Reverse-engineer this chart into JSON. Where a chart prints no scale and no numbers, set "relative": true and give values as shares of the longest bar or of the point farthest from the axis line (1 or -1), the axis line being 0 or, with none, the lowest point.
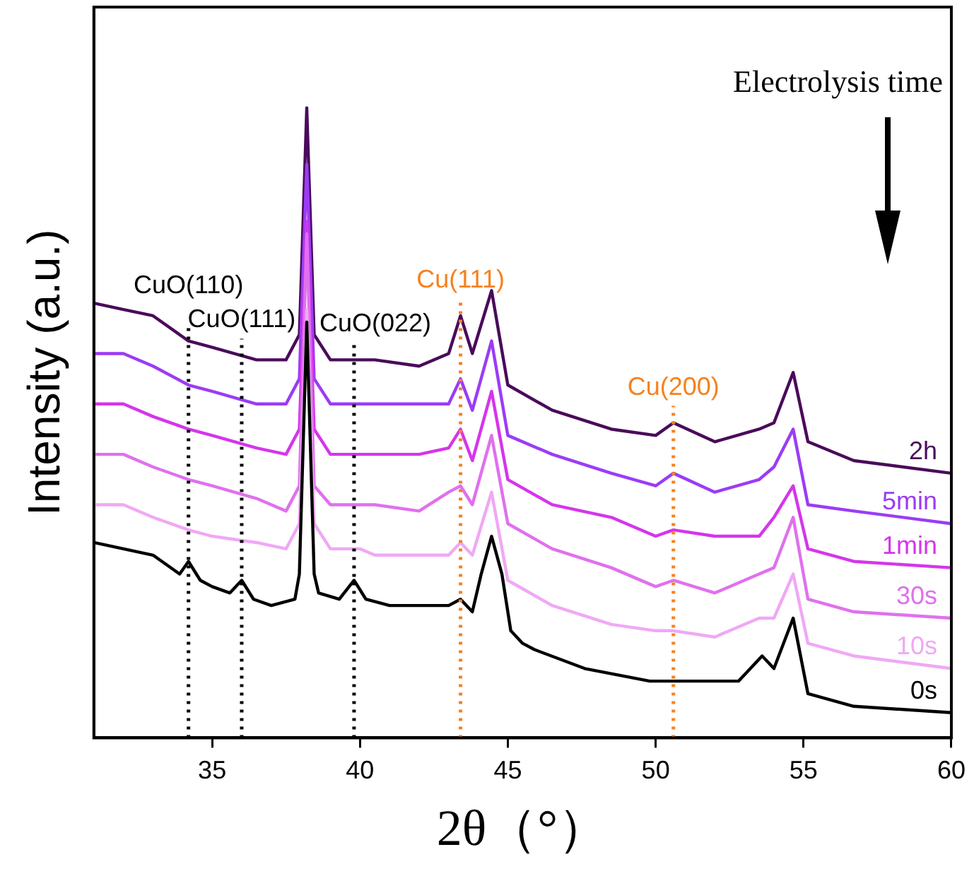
{
  "chart_data": {
    "type": "line",
    "relative": true,
    "xlabel": "2θ（°）",
    "ylabel": "Intensity (a.u.)",
    "xlim": [
      31,
      60
    ],
    "xticks": [
      35,
      40,
      45,
      50,
      55,
      60
    ],
    "tick_labels": "x",
    "grid": false,
    "legend": false,
    "marker": "none",
    "line_style": "solid",
    "x": [
      31,
      32,
      33,
      34.2,
      35,
      36.5,
      37.5,
      37.95,
      38.2,
      38.45,
      39,
      40,
      40.5,
      42,
      43,
      43.4,
      43.8,
      44.45,
      45,
      46.5,
      48.5,
      50,
      50.6,
      52,
      53.5,
      54,
      54.65,
      55.15,
      56.7,
      60
    ],
    "series": [
      {
        "name": "0s",
        "color": "#000000",
        "x": [
          31,
          32,
          33,
          33.9,
          34.2,
          34.6,
          35,
          35.6,
          36,
          36.4,
          37,
          37.8,
          37.95,
          38.2,
          38.45,
          38.6,
          39.3,
          39.8,
          40.2,
          41,
          42,
          43,
          43.4,
          43.8,
          44.1,
          44.45,
          44.8,
          45.1,
          45.5,
          45.9,
          47.6,
          49.8,
          51,
          52.8,
          53.6,
          54,
          54.65,
          55.15,
          56.7,
          60
        ],
        "values": [
          0.31,
          0.3,
          0.29,
          0.26,
          0.28,
          0.25,
          0.24,
          0.23,
          0.25,
          0.22,
          0.21,
          0.22,
          0.26,
          0.66,
          0.26,
          0.23,
          0.22,
          0.25,
          0.22,
          0.21,
          0.21,
          0.21,
          0.22,
          0.2,
          0.26,
          0.32,
          0.26,
          0.17,
          0.15,
          0.14,
          0.11,
          0.09,
          0.09,
          0.09,
          0.13,
          0.11,
          0.19,
          0.07,
          0.05,
          0.04
        ]
      },
      {
        "name": "10s",
        "color": "#f0a8f5",
        "values": [
          0.37,
          0.37,
          0.35,
          0.33,
          0.32,
          0.31,
          0.3,
          0.34,
          0.68,
          0.34,
          0.3,
          0.3,
          0.29,
          0.29,
          0.29,
          0.31,
          0.29,
          0.39,
          0.25,
          0.21,
          0.18,
          0.17,
          0.17,
          0.16,
          0.19,
          0.19,
          0.26,
          0.15,
          0.13,
          0.11
        ]
      },
      {
        "name": "30s",
        "color": "#e070ee",
        "values": [
          0.45,
          0.45,
          0.43,
          0.41,
          0.4,
          0.38,
          0.36,
          0.4,
          0.8,
          0.4,
          0.37,
          0.37,
          0.37,
          0.36,
          0.39,
          0.4,
          0.37,
          0.48,
          0.34,
          0.3,
          0.27,
          0.24,
          0.25,
          0.23,
          0.26,
          0.27,
          0.35,
          0.22,
          0.2,
          0.19
        ]
      },
      {
        "name": "1min",
        "color": "#d535ec",
        "values": [
          0.53,
          0.53,
          0.51,
          0.49,
          0.48,
          0.46,
          0.45,
          0.49,
          0.82,
          0.49,
          0.45,
          0.45,
          0.45,
          0.45,
          0.46,
          0.49,
          0.44,
          0.55,
          0.41,
          0.37,
          0.35,
          0.32,
          0.33,
          0.32,
          0.32,
          0.35,
          0.4,
          0.3,
          0.28,
          0.27
        ]
      },
      {
        "name": "5min",
        "color": "#9b3cf5",
        "values": [
          0.61,
          0.61,
          0.59,
          0.56,
          0.55,
          0.53,
          0.53,
          0.57,
          0.91,
          0.57,
          0.53,
          0.53,
          0.53,
          0.53,
          0.53,
          0.57,
          0.52,
          0.63,
          0.48,
          0.45,
          0.42,
          0.4,
          0.42,
          0.39,
          0.41,
          0.43,
          0.49,
          0.37,
          0.36,
          0.34
        ]
      },
      {
        "name": "2h",
        "color": "#4a0b5a",
        "values": [
          0.69,
          0.68,
          0.67,
          0.63,
          0.62,
          0.6,
          0.6,
          0.64,
          1.0,
          0.64,
          0.6,
          0.6,
          0.6,
          0.59,
          0.61,
          0.67,
          0.61,
          0.71,
          0.56,
          0.52,
          0.49,
          0.48,
          0.5,
          0.47,
          0.49,
          0.5,
          0.58,
          0.47,
          0.44,
          0.42
        ]
      }
    ],
    "ref_lines": [
      {
        "axis": "x",
        "value": 34.2,
        "label": "CuO(110)",
        "color": "#000000",
        "line_style": "dotted"
      },
      {
        "axis": "x",
        "value": 36.0,
        "label": "CuO(111)",
        "color": "#000000",
        "line_style": "dotted"
      },
      {
        "axis": "x",
        "value": 39.8,
        "label": "CuO(022)",
        "color": "#000000",
        "line_style": "dotted"
      },
      {
        "axis": "x",
        "value": 43.4,
        "label": "Cu(111)",
        "color": "#f5821f",
        "line_style": "dotted"
      },
      {
        "axis": "x",
        "value": 50.6,
        "label": "Cu(200)",
        "color": "#f5821f",
        "line_style": "dotted"
      }
    ],
    "annotations": [
      "Electrolysis time"
    ]
  }
}
